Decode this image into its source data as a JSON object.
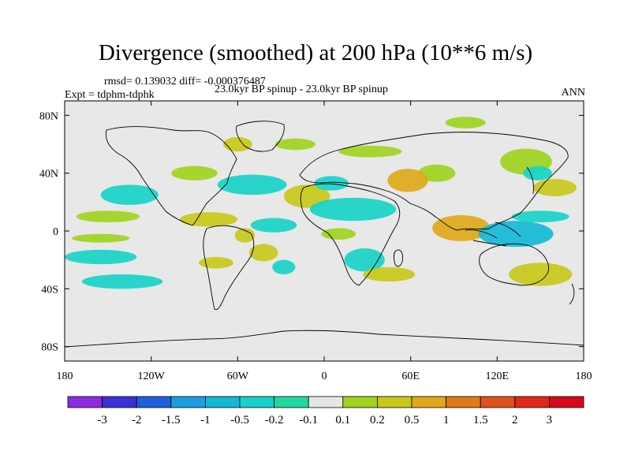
{
  "chart_data": {
    "type": "heatmap",
    "title": "Divergence (smoothed) at 200 hPa (10**6 m/s)",
    "subtitle": "23.0kyr BP spinup - 23.0kyr BP spinup",
    "stats": "rmsd= 0.139032 diff= -0.000376487",
    "experiment": "Expt = tdphm-tdphk",
    "season": "ANN",
    "xlim": [
      -180,
      180
    ],
    "ylim": [
      -90,
      90
    ],
    "x_ticks": [
      -180,
      -120,
      -60,
      0,
      60,
      120,
      180
    ],
    "x_tick_labels": [
      "180",
      "120W",
      "60W",
      "0",
      "60E",
      "120E",
      "180"
    ],
    "y_ticks": [
      80,
      40,
      0,
      -40,
      -80
    ],
    "y_tick_labels": [
      "80N",
      "40N",
      "0",
      "40S",
      "80S"
    ],
    "colorbar": {
      "labels": [
        "-3",
        "-2",
        "-1.5",
        "-1",
        "-0.5",
        "-0.2",
        "-0.1",
        "0.1",
        "0.2",
        "0.5",
        "1",
        "1.5",
        "2",
        "3"
      ],
      "colors": [
        "#8b2be2",
        "#3b2fd6",
        "#1e5fe0",
        "#1a9fe0",
        "#14b8d6",
        "#18d2c8",
        "#1fd9a0",
        "#e6e6e6",
        "#9fd320",
        "#c8c81a",
        "#e0a81a",
        "#e07a18",
        "#e0501a",
        "#e0281a",
        "#d40a1a"
      ]
    },
    "anomaly_regions": [
      {
        "lon": 78,
        "lat": 40,
        "rlon": 13,
        "rlat": 6,
        "value": 0.15
      },
      {
        "lon": 140,
        "lat": 48,
        "rlon": 18,
        "rlat": 9,
        "value": 0.15
      },
      {
        "lon": 98,
        "lat": 75,
        "rlon": 14,
        "rlat": 4,
        "value": 0.15
      },
      {
        "lon": 32,
        "lat": 55,
        "rlon": 22,
        "rlat": 4,
        "value": 0.15
      },
      {
        "lon": 148,
        "lat": 40,
        "rlon": 10,
        "rlat": 5,
        "value": -0.3
      },
      {
        "lon": 160,
        "lat": 30,
        "rlon": 15,
        "rlat": 6,
        "value": 0.3
      },
      {
        "lon": -12,
        "lat": 24,
        "rlon": 16,
        "rlat": 8,
        "value": 0.3
      },
      {
        "lon": 5,
        "lat": 33,
        "rlon": 12,
        "rlat": 5,
        "value": -0.3
      },
      {
        "lon": 58,
        "lat": 35,
        "rlon": 14,
        "rlat": 8,
        "value": 0.6
      },
      {
        "lon": -90,
        "lat": 40,
        "rlon": 16,
        "rlat": 5,
        "value": 0.15
      },
      {
        "lon": -60,
        "lat": 60,
        "rlon": 10,
        "rlat": 5,
        "value": 0.3
      },
      {
        "lon": -20,
        "lat": 60,
        "rlon": 14,
        "rlat": 4,
        "value": 0.15
      },
      {
        "lon": -135,
        "lat": 25,
        "rlon": 20,
        "rlat": 7,
        "value": -0.3
      },
      {
        "lon": -50,
        "lat": 32,
        "rlon": 24,
        "rlat": 7,
        "value": -0.3
      },
      {
        "lon": 20,
        "lat": 15,
        "rlon": 30,
        "rlat": 8,
        "value": -0.3
      },
      {
        "lon": 95,
        "lat": 2,
        "rlon": 20,
        "rlat": 9,
        "value": 0.7
      },
      {
        "lon": 133,
        "lat": -2,
        "rlon": 26,
        "rlat": 9,
        "value": -0.7
      },
      {
        "lon": 150,
        "lat": 10,
        "rlon": 20,
        "rlat": 4,
        "value": -0.3
      },
      {
        "lon": -80,
        "lat": 8,
        "rlon": 20,
        "rlat": 5,
        "value": 0.3
      },
      {
        "lon": -35,
        "lat": 4,
        "rlon": 16,
        "rlat": 5,
        "value": -0.3
      },
      {
        "lon": -150,
        "lat": 10,
        "rlon": 22,
        "rlat": 4,
        "value": 0.15
      },
      {
        "lon": -155,
        "lat": -5,
        "rlon": 20,
        "rlat": 3,
        "value": 0.15
      },
      {
        "lon": -155,
        "lat": -18,
        "rlon": 25,
        "rlat": 5,
        "value": -0.3
      },
      {
        "lon": -140,
        "lat": -35,
        "rlon": 28,
        "rlat": 5,
        "value": -0.3
      },
      {
        "lon": -42,
        "lat": -15,
        "rlon": 10,
        "rlat": 6,
        "value": 0.3
      },
      {
        "lon": -28,
        "lat": -25,
        "rlon": 8,
        "rlat": 5,
        "value": -0.3
      },
      {
        "lon": -55,
        "lat": -3,
        "rlon": 7,
        "rlat": 5,
        "value": 0.3
      },
      {
        "lon": -75,
        "lat": -22,
        "rlon": 12,
        "rlat": 4,
        "value": 0.3
      },
      {
        "lon": 28,
        "lat": -20,
        "rlon": 14,
        "rlat": 8,
        "value": -0.3
      },
      {
        "lon": 45,
        "lat": -30,
        "rlon": 18,
        "rlat": 5,
        "value": 0.3
      },
      {
        "lon": 150,
        "lat": -30,
        "rlon": 22,
        "rlat": 8,
        "value": 0.3
      },
      {
        "lon": 10,
        "lat": -2,
        "rlon": 12,
        "rlat": 4,
        "value": 0.15
      }
    ]
  }
}
